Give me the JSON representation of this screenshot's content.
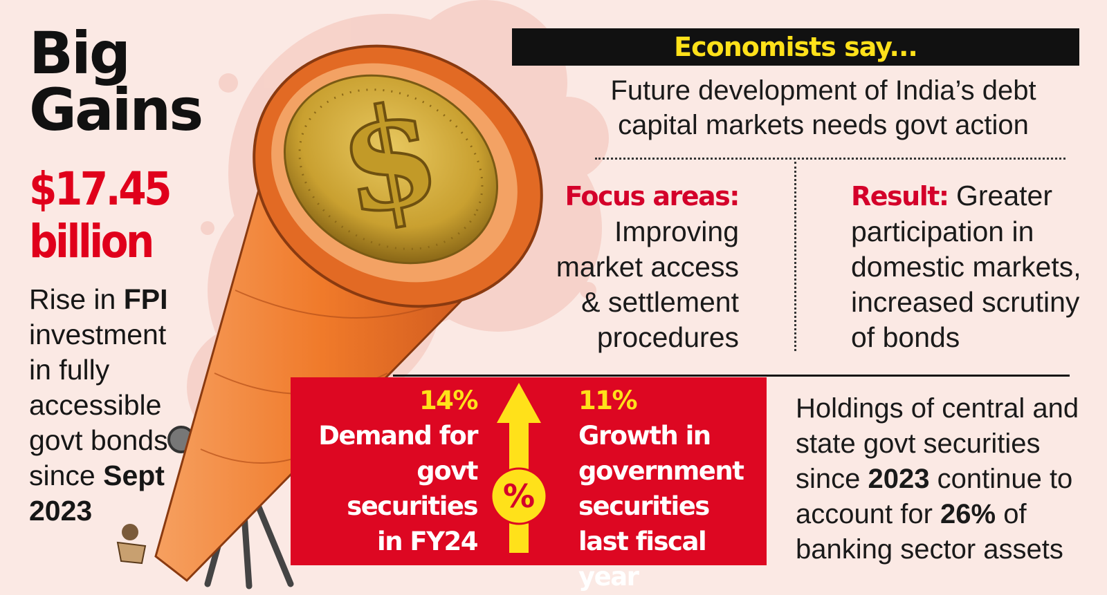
{
  "title": {
    "line1": "Big",
    "line2": "Gains"
  },
  "amount": {
    "value": "$17.45",
    "unit": "billion"
  },
  "left_desc": {
    "pre": "Rise in ",
    "bold": "FPI",
    "rest": " investment in fully accessible govt bonds since ",
    "date": "Sept 2023"
  },
  "banner": "Economists say...",
  "headline": "Future development of India’s debt capital markets needs govt action",
  "focus": {
    "label": "Focus areas:",
    "text": "Improving market access & settlement procedures"
  },
  "result": {
    "label": "Result:",
    "text": " Greater participation in domestic markets, increased scrutiny of bonds"
  },
  "stats": {
    "left": {
      "pct": "14%",
      "text": "Demand for govt securities in FY24"
    },
    "right": {
      "pct": "11%",
      "text": "Growth in government securities last fiscal year"
    },
    "icon_symbol": "%"
  },
  "right_note": {
    "p1": "Holdings of central and state govt securities since ",
    "b1": "2023",
    "p2": " continue to account for ",
    "b2": "26%",
    "p3": " of banking sector assets"
  },
  "colors": {
    "background": "#fbe9e4",
    "accent_red": "#dd0722",
    "accent_yellow": "#ffe11a",
    "cone_orange": "#f07a2a",
    "coin_gold": "#c9a030"
  },
  "icons": [
    "telescope-illustration",
    "dollar-coin-icon",
    "up-arrow-icon",
    "percent-icon"
  ]
}
